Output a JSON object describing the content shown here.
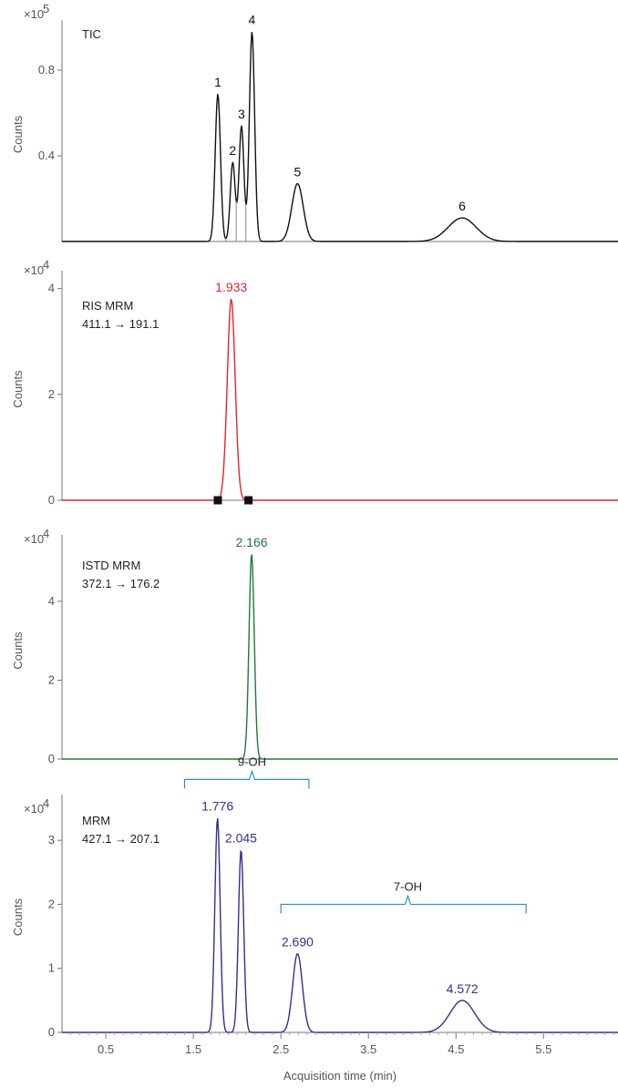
{
  "chart_data": [
    {
      "type": "line",
      "title": "TIC",
      "ylabel": "Counts",
      "multiplier": "×10",
      "multiplier_exp": "5",
      "color": "#111111",
      "xlim": [
        0.0,
        6.35
      ],
      "ylim": [
        0,
        1.0
      ],
      "yticks": [
        0.4,
        0.8
      ],
      "ytick_labels": [
        "0.4",
        "0.8"
      ],
      "baseline": 0.0,
      "peaks": [
        {
          "label": "1",
          "x": 1.78,
          "y": 0.69,
          "sigma": 0.03
        },
        {
          "label": "2",
          "x": 1.95,
          "y": 0.37,
          "sigma": 0.028
        },
        {
          "label": "3",
          "x": 2.05,
          "y": 0.54,
          "sigma": 0.028
        },
        {
          "label": "4",
          "x": 2.17,
          "y": 0.98,
          "sigma": 0.03
        },
        {
          "label": "5",
          "x": 2.69,
          "y": 0.27,
          "sigma": 0.065
        },
        {
          "label": "6",
          "x": 4.57,
          "y": 0.11,
          "sigma": 0.16
        }
      ],
      "split_lines_x": [
        1.87,
        1.99,
        2.1,
        2.26
      ]
    },
    {
      "type": "line",
      "title": "RIS MRM",
      "transition": "411.1 → 191.1",
      "ylabel": "Counts",
      "multiplier": "×10",
      "multiplier_exp": "4",
      "color": "#e3242b",
      "xlim": [
        0.0,
        6.35
      ],
      "ylim": [
        0,
        4.2
      ],
      "yticks": [
        0,
        2,
        4
      ],
      "ytick_labels": [
        "0",
        "2",
        "4"
      ],
      "baseline": 0.0,
      "peaks": [
        {
          "label": "1.933",
          "x": 1.933,
          "y": 3.8,
          "sigma": 0.045
        }
      ],
      "integration_markers_x": [
        1.78,
        2.13
      ]
    },
    {
      "type": "line",
      "title": "ISTD MRM",
      "transition": "372.1 → 176.2",
      "ylabel": "Counts",
      "multiplier": "×10",
      "multiplier_exp": "4",
      "color": "#1e7a3c",
      "xlim": [
        0.0,
        6.35
      ],
      "ylim": [
        0,
        5.5
      ],
      "yticks": [
        0,
        2,
        4
      ],
      "ytick_labels": [
        "0",
        "2",
        "4"
      ],
      "baseline": 0.0,
      "peaks": [
        {
          "label": "2.166",
          "x": 2.166,
          "y": 5.2,
          "sigma": 0.03
        }
      ]
    },
    {
      "type": "line",
      "title": "MRM",
      "transition": "427.1 → 207.1",
      "ylabel": "Counts",
      "multiplier": "×10",
      "multiplier_exp": "4",
      "color": "#2e3192",
      "xlim": [
        0.0,
        6.35
      ],
      "ylim": [
        0,
        3.6
      ],
      "yticks": [
        0,
        1,
        2,
        3
      ],
      "ytick_labels": [
        "0",
        "1",
        "2",
        "3"
      ],
      "baseline": 0.0,
      "peaks": [
        {
          "label": "1.776",
          "x": 1.776,
          "y": 3.35,
          "sigma": 0.03
        },
        {
          "label": "2.045",
          "x": 2.045,
          "y": 2.85,
          "sigma": 0.03
        },
        {
          "label": "2.690",
          "x": 2.69,
          "y": 1.23,
          "sigma": 0.055
        },
        {
          "label": "4.572",
          "x": 4.572,
          "y": 0.5,
          "sigma": 0.14
        }
      ],
      "brackets": [
        {
          "label": "9-OH",
          "x_start": 1.4,
          "x_end": 2.82,
          "x_apex": 2.17,
          "y": 3.95
        },
        {
          "label": "7-OH",
          "x_start": 2.5,
          "x_end": 5.3,
          "x_apex": 3.95,
          "y": 2.0
        }
      ],
      "bracket_color": "#2f8fc6",
      "xticks": [
        0.5,
        1.5,
        2.5,
        3.5,
        4.5,
        5.5
      ],
      "xtick_labels": [
        "0.5",
        "1.5",
        "2.5",
        "3.5",
        "4.5",
        "5.5"
      ],
      "xlabel": "Acquisition time (min)"
    }
  ]
}
